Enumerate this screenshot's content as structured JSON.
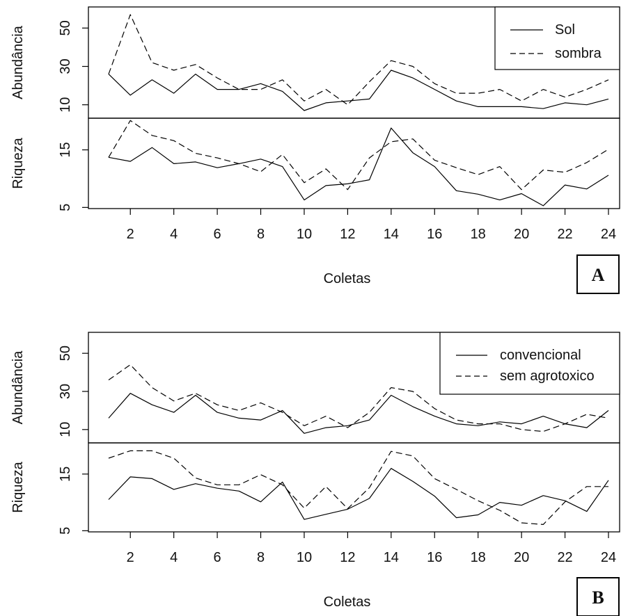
{
  "chart_data": [
    {
      "type": "line",
      "panel_label": "A",
      "xlabel": "Coletas",
      "x": [
        1,
        2,
        3,
        4,
        5,
        6,
        7,
        8,
        9,
        10,
        11,
        12,
        13,
        14,
        15,
        16,
        17,
        18,
        19,
        20,
        21,
        22,
        23,
        24
      ],
      "x_ticks": [
        2,
        4,
        6,
        8,
        10,
        12,
        14,
        16,
        18,
        20,
        22,
        24
      ],
      "subplots": [
        {
          "ylabel": "Abundância",
          "ylim": [
            3,
            61
          ],
          "y_ticks": [
            10,
            30,
            50
          ],
          "series": [
            {
              "name": "Sol",
              "style": "solid",
              "values": [
                26,
                15,
                23,
                16,
                26,
                18,
                18,
                21,
                17,
                7,
                11,
                12,
                13,
                28,
                24,
                18,
                12,
                9,
                9,
                9,
                8,
                11,
                10,
                13
              ]
            },
            {
              "name": "sombra",
              "style": "dashed",
              "values": [
                26,
                57,
                32,
                28,
                31,
                24,
                18,
                18,
                23,
                12,
                18,
                10,
                22,
                33,
                30,
                21,
                16,
                16,
                18,
                12,
                18,
                14,
                18,
                23
              ]
            }
          ]
        },
        {
          "ylabel": "Riqueza",
          "ylim": [
            4.8,
            20.5
          ],
          "y_ticks": [
            5,
            15
          ],
          "series": [
            {
              "name": "Sol",
              "style": "solid",
              "values": [
                13.7,
                13,
                15.4,
                12.6,
                12.9,
                11.9,
                12.6,
                13.4,
                12.1,
                6.3,
                8.8,
                9.1,
                9.8,
                18.8,
                14.5,
                12.1,
                7.9,
                7.3,
                6.3,
                7.4,
                5.3,
                8.9,
                8.2,
                10.6
              ]
            },
            {
              "name": "sombra",
              "style": "dashed",
              "values": [
                13.7,
                20.1,
                17.5,
                16.6,
                14.4,
                13.6,
                12.6,
                11.2,
                14.2,
                9.3,
                11.7,
                8.1,
                13.6,
                16.4,
                16.9,
                13.2,
                11.9,
                10.7,
                12.1,
                8.1,
                11.5,
                11.1,
                12.8,
                15.1
              ]
            }
          ]
        }
      ],
      "legend": {
        "position": "top-right",
        "entries": [
          "Sol",
          "sombra"
        ]
      }
    },
    {
      "type": "line",
      "panel_label": "B",
      "xlabel": "Coletas",
      "x": [
        1,
        2,
        3,
        4,
        5,
        6,
        7,
        8,
        9,
        10,
        11,
        12,
        13,
        14,
        15,
        16,
        17,
        18,
        19,
        20,
        21,
        22,
        23,
        24
      ],
      "x_ticks": [
        2,
        4,
        6,
        8,
        10,
        12,
        14,
        16,
        18,
        20,
        22,
        24
      ],
      "subplots": [
        {
          "ylabel": "Abundância",
          "ylim": [
            3,
            61
          ],
          "y_ticks": [
            10,
            30,
            50
          ],
          "series": [
            {
              "name": "convencional",
              "style": "solid",
              "values": [
                16,
                29,
                23,
                19,
                28,
                19,
                16,
                15,
                20,
                8,
                11,
                12,
                15,
                28,
                22,
                17,
                13,
                12,
                14,
                13,
                17,
                13,
                11,
                20
              ]
            },
            {
              "name": "sem agrotoxico",
              "style": "dashed",
              "values": [
                36,
                44,
                32,
                25,
                29,
                23,
                20,
                24,
                19,
                12,
                17,
                11,
                19,
                32,
                30,
                21,
                15,
                13,
                13,
                10,
                9,
                13,
                18,
                16
              ]
            }
          ]
        },
        {
          "ylabel": "Riqueza",
          "ylim": [
            4.8,
            20.5
          ],
          "y_ticks": [
            5,
            15
          ],
          "series": [
            {
              "name": "convencional",
              "style": "solid",
              "values": [
                10.5,
                14.5,
                14.2,
                12.3,
                13.3,
                12.5,
                12,
                10.1,
                13.6,
                7,
                7.9,
                8.8,
                10.7,
                16,
                13.7,
                11.1,
                7.3,
                7.8,
                10,
                9.5,
                11.2,
                10.3,
                8.4,
                13.9
              ]
            },
            {
              "name": "sem agrotoxico",
              "style": "dashed",
              "values": [
                17.8,
                19.1,
                19.1,
                17.8,
                14.3,
                13.1,
                13.1,
                14.9,
                13.1,
                9,
                12.8,
                8.9,
                12.6,
                19,
                18.2,
                14.2,
                12.3,
                10.3,
                8.6,
                6.4,
                6.1,
                10.1,
                12.8,
                12.8
              ]
            }
          ]
        }
      ],
      "legend": {
        "position": "top-right",
        "entries": [
          "convencional",
          "sem agrotoxico"
        ]
      }
    }
  ]
}
